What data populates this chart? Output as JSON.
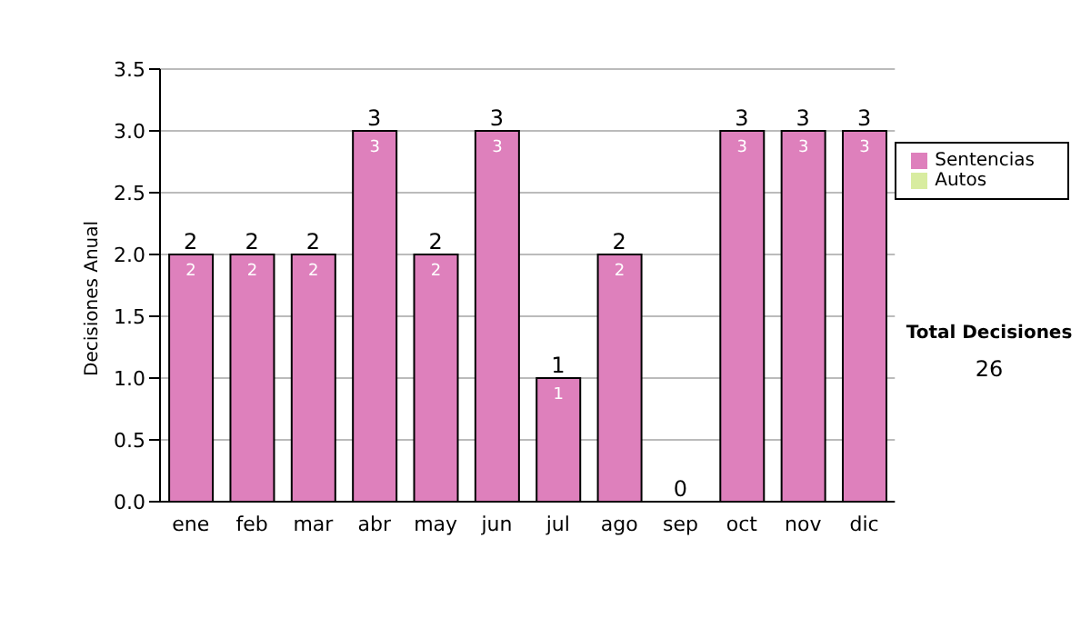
{
  "chart_data": {
    "type": "bar",
    "stacked": true,
    "ylabel": "Decisiones Anual",
    "categories": [
      "ene",
      "feb",
      "mar",
      "abr",
      "may",
      "jun",
      "jul",
      "ago",
      "sep",
      "oct",
      "nov",
      "dic"
    ],
    "series": [
      {
        "name": "Sentencias",
        "color": "#de80bc",
        "values": [
          2,
          2,
          2,
          3,
          2,
          3,
          1,
          2,
          0,
          3,
          3,
          3
        ],
        "value_labels": [
          "2",
          "2",
          "2",
          "3",
          "2",
          "3",
          "1",
          "2",
          null,
          "3",
          "3",
          "3"
        ]
      },
      {
        "name": "Autos",
        "color": "#d8eca0",
        "values": [
          0,
          0,
          0,
          0,
          0,
          0,
          0,
          0,
          0,
          0,
          0,
          0
        ]
      }
    ],
    "totals": [
      "2",
      "2",
      "2",
      "3",
      "2",
      "3",
      "1",
      "2",
      "0",
      "3",
      "3",
      "3"
    ],
    "ylim": [
      0,
      3.5
    ],
    "yticks": [
      {
        "value": 0,
        "label": "0.0"
      },
      {
        "value": 0.5,
        "label": "0.5"
      },
      {
        "value": 1,
        "label": "1.0"
      },
      {
        "value": 1.5,
        "label": "1.5"
      },
      {
        "value": 2,
        "label": "2.0"
      },
      {
        "value": 2.5,
        "label": "2.5"
      },
      {
        "value": 3,
        "label": "3.0"
      },
      {
        "value": 3.5,
        "label": "3.5"
      }
    ],
    "grid": "y",
    "legend": "right",
    "annotations": [
      "Total Decisiones",
      "26"
    ]
  }
}
